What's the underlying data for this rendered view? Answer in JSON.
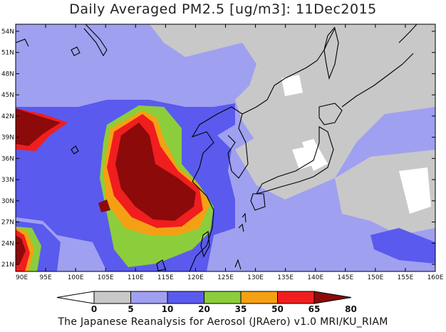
{
  "title": "Daily Averaged PM2.5 [ug/m3]: 11Dec2015",
  "footer": "The Japanese Reanalysis for Aerosol (JRAero) v1.0 MRI/KU_RIAM",
  "map": {
    "lon_range": [
      90,
      160
    ],
    "lat_range": [
      20,
      55
    ],
    "lon_ticks": [
      "90E",
      "95E",
      "100E",
      "105E",
      "110E",
      "115E",
      "120E",
      "125E",
      "130E",
      "135E",
      "140E",
      "145E",
      "150E",
      "155E",
      "160E"
    ],
    "lat_ticks": [
      "21N",
      "24N",
      "27N",
      "30N",
      "33N",
      "36N",
      "39N",
      "42N",
      "45N",
      "48N",
      "51N",
      "54N"
    ]
  },
  "colorbar": {
    "levels": [
      "0",
      "5",
      "10",
      "20",
      "35",
      "50",
      "65",
      "80"
    ],
    "colors": [
      "#ffffff",
      "#c8c8c8",
      "#a0a0f0",
      "#5a5aee",
      "#8ccd3c",
      "#f5a014",
      "#f01e1e",
      "#8c0a0a"
    ]
  }
}
